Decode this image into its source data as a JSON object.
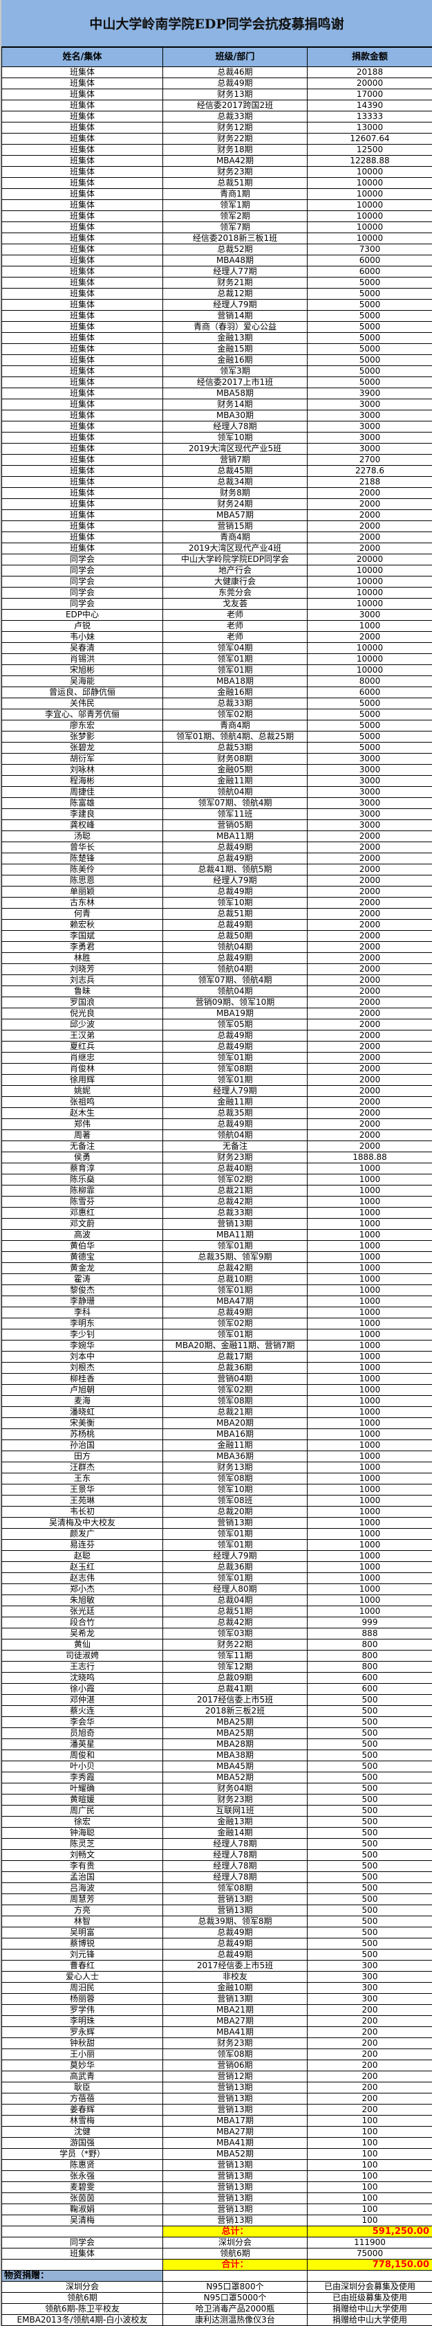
{
  "title": "中山大学岭南学院EDP同学会抗疫募捐鸣谢",
  "columns": [
    "姓名/集体",
    "班级/部门",
    "捐款金额"
  ],
  "donations": [
    [
      "班集体",
      "总裁46期",
      "20188"
    ],
    [
      "班集体",
      "总裁49期",
      "20000"
    ],
    [
      "班集体",
      "财务13期",
      "17000"
    ],
    [
      "班集体",
      "经信委2017跨国2班",
      "14390"
    ],
    [
      "班集体",
      "总裁33期",
      "13333"
    ],
    [
      "班集体",
      "财务12期",
      "13000"
    ],
    [
      "班集体",
      "财务22期",
      "12607.64"
    ],
    [
      "班集体",
      "财务18期",
      "12500"
    ],
    [
      "班集体",
      "MBA42期",
      "12288.88"
    ],
    [
      "班集体",
      "财务23期",
      "10000"
    ],
    [
      "班集体",
      "总裁51期",
      "10000"
    ],
    [
      "班集体",
      "青商1期",
      "10000"
    ],
    [
      "班集体",
      "领军1期",
      "10000"
    ],
    [
      "班集体",
      "领军2期",
      "10000"
    ],
    [
      "班集体",
      "领军7期",
      "10000"
    ],
    [
      "班集体",
      "经信委2018新三板1班",
      "10000"
    ],
    [
      "班集体",
      "总裁52期",
      "7300"
    ],
    [
      "班集体",
      "MBA48期",
      "6000"
    ],
    [
      "班集体",
      "经理人77期",
      "6000"
    ],
    [
      "班集体",
      "财务21期",
      "5000"
    ],
    [
      "班集体",
      "总裁12期",
      "5000"
    ],
    [
      "班集体",
      "经理人79期",
      "5000"
    ],
    [
      "班集体",
      "营销14期",
      "5000"
    ],
    [
      "班集体",
      "青商（春羽）爱心公益",
      "5000"
    ],
    [
      "班集体",
      "金融13期",
      "5000"
    ],
    [
      "班集体",
      "金融15期",
      "5000"
    ],
    [
      "班集体",
      "金融16期",
      "5000"
    ],
    [
      "班集体",
      "领军3期",
      "5000"
    ],
    [
      "班集体",
      "经信委2017上市1班",
      "5000"
    ],
    [
      "班集体",
      "MBA58期",
      "3900"
    ],
    [
      "班集体",
      "财务14期",
      "3000"
    ],
    [
      "班集体",
      "MBA30期",
      "3000"
    ],
    [
      "班集体",
      "经理人78期",
      "3000"
    ],
    [
      "班集体",
      "领军10期",
      "3000"
    ],
    [
      "班集体",
      "2019大湾区现代产业5班",
      "3000"
    ],
    [
      "班集体",
      "营销7期",
      "2700"
    ],
    [
      "班集体",
      "总裁45期",
      "2278.6"
    ],
    [
      "班集体",
      "总裁34期",
      "2188"
    ],
    [
      "班集体",
      "财务8期",
      "2000"
    ],
    [
      "班集体",
      "财务24期",
      "2000"
    ],
    [
      "班集体",
      "MBA57期",
      "2000"
    ],
    [
      "班集体",
      "营销15期",
      "2000"
    ],
    [
      "班集体",
      "青商4期",
      "2000"
    ],
    [
      "班集体",
      "2019大湾区现代产业4班",
      "2000"
    ],
    [
      "同学会",
      "中山大学岭院学院EDP同学会",
      "20000"
    ],
    [
      "同学会",
      "地产行会",
      "10000"
    ],
    [
      "同学会",
      "大健康行会",
      "10000"
    ],
    [
      "同学会",
      "东莞分会",
      "10000"
    ],
    [
      "同学会",
      "戈友荟",
      "10000"
    ],
    [
      "EDP中心",
      "老师",
      "3000"
    ],
    [
      "卢锐",
      "老师",
      "1000"
    ],
    [
      "韦小妹",
      "老师",
      "2000"
    ],
    [
      "吴春清",
      "领军04期",
      "10000"
    ],
    [
      "肖锡洪",
      "领军01期",
      "10000"
    ],
    [
      "宋旭彬",
      "领军01期",
      "10000"
    ],
    [
      "吴海能",
      "MBA18期",
      "8000"
    ],
    [
      "曾运良、邱静伉俪",
      "金融16期",
      "6000"
    ],
    [
      "关伟民",
      "总裁33期",
      "5000"
    ],
    [
      "李宜心、邬青芳伉俪",
      "领军02期",
      "5000"
    ],
    [
      "廖东宏",
      "青商4期",
      "5000"
    ],
    [
      "张梦影",
      "领军01期、领航4期、总裁25期",
      "5000"
    ],
    [
      "张碧龙",
      "总裁53期",
      "5000"
    ],
    [
      "胡衍军",
      "财务08期",
      "3000"
    ],
    [
      "刘咏林",
      "金融05期",
      "3000"
    ],
    [
      "程海彬",
      "金融11期",
      "3000"
    ],
    [
      "周捷佳",
      "领航04期",
      "3000"
    ],
    [
      "陈富雄",
      "领军07期、领航4期",
      "3000"
    ],
    [
      "李建良",
      "领军11班",
      "3000"
    ],
    [
      "龚权峰",
      "营销05期",
      "3000"
    ],
    [
      "汤聪",
      "MBA11期",
      "2000"
    ],
    [
      "曾华长",
      "总裁49期",
      "2000"
    ],
    [
      "陈楚锋",
      "总裁49期",
      "2000"
    ],
    [
      "陈美伶",
      "总裁41期、领航5期",
      "2000"
    ],
    [
      "陈思恩",
      "经理人79期",
      "2000"
    ],
    [
      "单丽颖",
      "总裁49期",
      "2000"
    ],
    [
      "古东林",
      "领军10期",
      "2000"
    ],
    [
      "何青",
      "总裁51期",
      "2000"
    ],
    [
      "赖宏秋",
      "总裁49期",
      "2000"
    ],
    [
      "李国斌",
      "总裁50期",
      "2000"
    ],
    [
      "李勇君",
      "领航04期",
      "2000"
    ],
    [
      "林胜",
      "总裁49期",
      "2000"
    ],
    [
      "刘晓芳",
      "领航04期",
      "2000"
    ],
    [
      "刘志兵",
      "领军07期、领航4期",
      "2000"
    ],
    [
      "鲁昧",
      "领航04期",
      "2000"
    ],
    [
      "罗国浪",
      "营销09期、领军10期",
      "2000"
    ],
    [
      "倪光良",
      "MBA19期",
      "2000"
    ],
    [
      "邱少波",
      "领军05期",
      "2000"
    ],
    [
      "王汉弟",
      "总裁49期",
      "2000"
    ],
    [
      "夏红兵",
      "总裁49期",
      "2000"
    ],
    [
      "肖继忠",
      "领军01期",
      "2000"
    ],
    [
      "肖俊林",
      "领军08期",
      "2000"
    ],
    [
      "徐用辉",
      "领军01期",
      "2000"
    ],
    [
      "姚妮",
      "经理人79期",
      "2000"
    ],
    [
      "张祖鸣",
      "金融11期",
      "2000"
    ],
    [
      "赵木生",
      "总裁35期",
      "2000"
    ],
    [
      "郑伟",
      "总裁49期",
      "2000"
    ],
    [
      "周著",
      "领航04期",
      "2000"
    ],
    [
      "无备注",
      "无备注",
      "2000"
    ],
    [
      "侯勇",
      "财务23期",
      "1888.88"
    ],
    [
      "蔡育淳",
      "总裁40期",
      "1000"
    ],
    [
      "陈乐燊",
      "领军02期",
      "1000"
    ],
    [
      "陈柳霏",
      "总裁21期",
      "1000"
    ],
    [
      "陈雪芬",
      "总裁42期",
      "1000"
    ],
    [
      "邓惠红",
      "总裁33期",
      "1000"
    ],
    [
      "邓文蔚",
      "营销13期",
      "1000"
    ],
    [
      "高波",
      "MBA11期",
      "1000"
    ],
    [
      "黄伯华",
      "领军01期",
      "1000"
    ],
    [
      "黄德宝",
      "总裁35期、领军9期",
      "1000"
    ],
    [
      "黄金龙",
      "总裁42期",
      "1000"
    ],
    [
      "霍涛",
      "总裁10期",
      "1000"
    ],
    [
      "黎俊杰",
      "领军01期",
      "1000"
    ],
    [
      "李静珊",
      "MBA47期",
      "1000"
    ],
    [
      "李科",
      "总裁49期",
      "1000"
    ],
    [
      "李明东",
      "领军02期",
      "1000"
    ],
    [
      "李少钊",
      "领军01期",
      "1000"
    ],
    [
      "李婉华",
      "MBA20期、金融11期、营销7期",
      "1000"
    ],
    [
      "刘本中",
      "总裁17期",
      "1000"
    ],
    [
      "刘根杰",
      "总裁36期",
      "1000"
    ],
    [
      "柳桂香",
      "营销04期",
      "1000"
    ],
    [
      "卢旭朝",
      "领军02期",
      "1000"
    ],
    [
      "麦海",
      "领军08期",
      "1000"
    ],
    [
      "潘晓虹",
      "总裁21期",
      "1000"
    ],
    [
      "宋美衡",
      "MBA20期",
      "1000"
    ],
    [
      "苏杨桃",
      "MBA16期",
      "1000"
    ],
    [
      "孙治国",
      "金融11期",
      "1000"
    ],
    [
      "田方",
      "MBA36期",
      "1000"
    ],
    [
      "汪群杰",
      "财务13期",
      "1000"
    ],
    [
      "王东",
      "领军08期",
      "1000"
    ],
    [
      "王景华",
      "领军10期",
      "1000"
    ],
    [
      "王苑琳",
      "领军08班",
      "1000"
    ],
    [
      "韦长初",
      "总裁20期",
      "1000"
    ],
    [
      "吴清梅及中大校友",
      "营销13期",
      "1000"
    ],
    [
      "颜发广",
      "领军01期",
      "1000"
    ],
    [
      "易连芬",
      "领军01期",
      "1000"
    ],
    [
      "赵聪",
      "经理人79期",
      "1000"
    ],
    [
      "赵玉红",
      "总裁36期",
      "1000"
    ],
    [
      "赵志伟",
      "领军01期",
      "1000"
    ],
    [
      "郑小杰",
      "经理人80期",
      "1000"
    ],
    [
      "朱旭敏",
      "总裁04期",
      "1000"
    ],
    [
      "张光廷",
      "总裁51期",
      "1000"
    ],
    [
      "段合竹",
      "总裁42期",
      "999"
    ],
    [
      "吴希龙",
      "领军03期",
      "888"
    ],
    [
      "黄仙",
      "财务22期",
      "800"
    ],
    [
      "司徒淑娉",
      "领军11期",
      "800"
    ],
    [
      "王志行",
      "领军12期",
      "800"
    ],
    [
      "沈晓鸣",
      "总裁09期",
      "600"
    ],
    [
      "徐小霞",
      "总裁41期",
      "600"
    ],
    [
      "邓仲湛",
      "2017经信委上市5班",
      "500"
    ],
    [
      "蔡火连",
      "2018新三板2班",
      "500"
    ],
    [
      "李会华",
      "MBA25期",
      "500"
    ],
    [
      "员旭奇",
      "MBA25期",
      "500"
    ],
    [
      "潘英星",
      "MBA28期",
      "500"
    ],
    [
      "周俊和",
      "MBA38期",
      "500"
    ],
    [
      "叶小贝",
      "MBA45期",
      "500"
    ],
    [
      "李秀霞",
      "MBA52期",
      "500"
    ],
    [
      "叶耀确",
      "财务04期",
      "500"
    ],
    [
      "黄暄媛",
      "财务23期",
      "500"
    ],
    [
      "周广民",
      "互联网1班",
      "500"
    ],
    [
      "徐宏",
      "金融13期",
      "500"
    ],
    [
      "钟海聪",
      "金融14期",
      "500"
    ],
    [
      "陈灵芝",
      "经理人78期",
      "500"
    ],
    [
      "刘畅文",
      "经理人78期",
      "500"
    ],
    [
      "李有贵",
      "经理人78期",
      "500"
    ],
    [
      "孟治国",
      "经理人78期",
      "500"
    ],
    [
      "吕海波",
      "领军08期",
      "500"
    ],
    [
      "周慧芳",
      "营销13期",
      "500"
    ],
    [
      "方亮",
      "营销13期",
      "500"
    ],
    [
      "林智",
      "总裁39期、领军8期",
      "500"
    ],
    [
      "吴明富",
      "总裁49期",
      "500"
    ],
    [
      "蔡博锐",
      "总裁49期",
      "500"
    ],
    [
      "刘元锋",
      "总裁49期",
      "500"
    ],
    [
      "曹春红",
      "2017经信委上市5班",
      "300"
    ],
    [
      "爱心人士",
      "非校友",
      "300"
    ],
    [
      "周汨民",
      "金融10期",
      "300"
    ],
    [
      "杨丽蓉",
      "营销13期",
      "300"
    ],
    [
      "罗学伟",
      "MBA21期",
      "200"
    ],
    [
      "李明珠",
      "MBA27期",
      "200"
    ],
    [
      "罗永辉",
      "MBA41期",
      "200"
    ],
    [
      "钟秋甜",
      "财务23期",
      "200"
    ],
    [
      "王小丽",
      "领军08期",
      "200"
    ],
    [
      "莫妙华",
      "营销06期",
      "200"
    ],
    [
      "高武青",
      "营销12期",
      "200"
    ],
    [
      "耿臣",
      "营销13期",
      "200"
    ],
    [
      "方蓓蓓",
      "营销13期",
      "200"
    ],
    [
      "姜春辉",
      "营销13期",
      "200"
    ],
    [
      "林雪梅",
      "MBA17期",
      "100"
    ],
    [
      "沈健",
      "MBA27期",
      "100"
    ],
    [
      "游国强",
      "MBA41期",
      "100"
    ],
    [
      "学员（*野）",
      "MBA52期",
      "100"
    ],
    [
      "陈惠贤",
      "营销13期",
      "100"
    ],
    [
      "张永强",
      "营销13期",
      "100"
    ],
    [
      "麦碧雯",
      "营销13期",
      "100"
    ],
    [
      "张茵茵",
      "营销13期",
      "100"
    ],
    [
      "鞠淑娟",
      "营销13期",
      "100"
    ],
    [
      "吴清梅",
      "营销13期",
      "100"
    ]
  ],
  "subtotal": {
    "label": "总计：",
    "amount": "591,250.00"
  },
  "extra_donations": [
    [
      "同学会",
      "深圳分会",
      "111900"
    ],
    [
      "班集体",
      "领航6期",
      "75000"
    ]
  ],
  "grand_total": {
    "label": "合计：",
    "amount": "778,150.00"
  },
  "material_section": {
    "heading": "物资捐赠：",
    "rows": [
      [
        "深圳分会",
        "N95口罩800个",
        "已由深圳分会募集及使用"
      ],
      [
        "领航6期",
        "N95口罩5000个",
        "已由班级募集及使用"
      ],
      [
        "领航6期-陈卫平校友",
        "哈卫消毒产品2000瓶",
        "捐赠给中山大学使用"
      ],
      [
        "EMBA2013冬/领航4期-白小波校友",
        "康利达测温热像仪3台",
        "捐赠给中山大学使用"
      ]
    ]
  },
  "colors": {
    "header_bg": "#8DB4E2",
    "section_bg": "#95B3D7",
    "total_bg": "#FFFF00",
    "total_text": "#FF0000"
  }
}
